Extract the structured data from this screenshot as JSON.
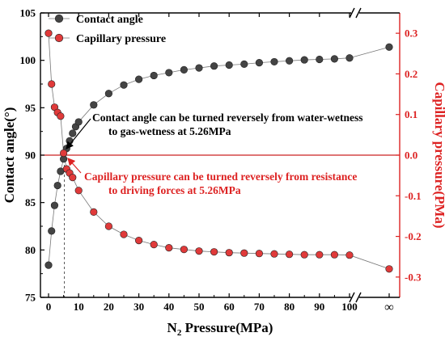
{
  "chart_data": {
    "type": "scatter",
    "xlabel_main": "N",
    "xlabel_sub": "2",
    "xlabel_rest": " Pressure(MPa)",
    "ylabel": "Contact angle(°)",
    "y2label": "Capillary pressure(PMa)",
    "xlim": [
      0,
      100
    ],
    "ylim": [
      75,
      105
    ],
    "y2lim": [
      -0.35,
      0.35
    ],
    "x_ticks": [
      0,
      10,
      20,
      30,
      40,
      50,
      60,
      70,
      80,
      90,
      100
    ],
    "x_tick_labels": [
      "0",
      "10",
      "20",
      "30",
      "40",
      "50",
      "60",
      "70",
      "80",
      "90",
      "100"
    ],
    "x_break_label": "∞",
    "y_ticks": [
      75,
      80,
      85,
      90,
      95,
      100,
      105
    ],
    "y_tick_labels": [
      "75",
      "80",
      "85",
      "90",
      "95",
      "100",
      "105"
    ],
    "y2_ticks": [
      -0.3,
      -0.2,
      -0.1,
      0.0,
      0.1,
      0.2,
      0.3
    ],
    "y2_tick_labels": [
      "-0.3",
      "-0.2",
      "-0.1",
      "0.0",
      "0.1",
      "0.2",
      "0.3"
    ],
    "legend_position": "top-left",
    "reference_y2": 0.0,
    "reference_x": 5.26,
    "colors": {
      "left_axis": "#000000",
      "right_axis": "#dd2222",
      "contact": "#444444",
      "capillary": "#e03a3a",
      "ref_line": "#cc2222"
    },
    "series": [
      {
        "name": "Contact angle",
        "axis": "left",
        "color": "#444444",
        "x": [
          0,
          1,
          2,
          3,
          4,
          5,
          6,
          7,
          8,
          9,
          10,
          15,
          20,
          25,
          30,
          35,
          40,
          45,
          50,
          55,
          60,
          65,
          70,
          75,
          80,
          85,
          90,
          95,
          100
        ],
        "y": [
          78.4,
          82.0,
          84.7,
          86.8,
          88.3,
          89.6,
          90.7,
          91.5,
          92.3,
          93.0,
          93.5,
          95.3,
          96.5,
          97.4,
          98.0,
          98.4,
          98.7,
          99.0,
          99.2,
          99.4,
          99.5,
          99.6,
          99.75,
          99.85,
          99.95,
          100.05,
          100.1,
          100.15,
          100.25
        ],
        "break_value": 101.4
      },
      {
        "name": "Capillary pressure",
        "axis": "right",
        "color": "#e03a3a",
        "x": [
          0,
          1,
          2,
          3,
          4,
          5,
          6,
          7,
          8,
          10,
          15,
          20,
          25,
          30,
          35,
          40,
          45,
          50,
          55,
          60,
          65,
          70,
          75,
          80,
          85,
          90,
          95,
          100
        ],
        "y": [
          0.3,
          0.175,
          0.118,
          0.105,
          0.096,
          0.005,
          -0.034,
          -0.044,
          -0.055,
          -0.087,
          -0.14,
          -0.175,
          -0.195,
          -0.21,
          -0.22,
          -0.228,
          -0.232,
          -0.236,
          -0.238,
          -0.24,
          -0.241,
          -0.242,
          -0.243,
          -0.244,
          -0.245,
          -0.245,
          -0.245,
          -0.246
        ],
        "break_value": -0.28
      }
    ],
    "annotations": [
      {
        "color": "black",
        "lines": [
          "Contact angle can be turned reversely from water-wetness",
          "to gas-wetness at 5.26MPa"
        ]
      },
      {
        "color": "red",
        "lines": [
          "Capillary pressure can be turned reversely from resistance",
          "to driving forces at 5.26MPa"
        ]
      }
    ]
  }
}
